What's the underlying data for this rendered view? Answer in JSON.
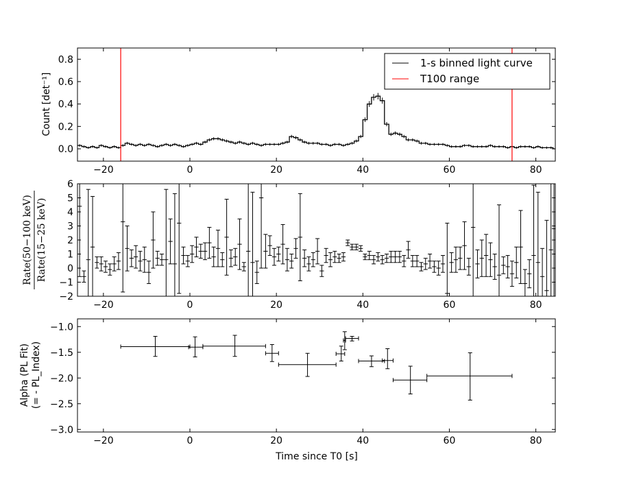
{
  "chart_data": [
    {
      "type": "line",
      "panel": "light-curve",
      "ylabel": "Count [det⁻¹]",
      "xlim": [
        -26,
        84.5
      ],
      "ylim": [
        -0.11,
        0.9
      ],
      "xticks": [
        -20,
        0,
        20,
        40,
        60,
        80
      ],
      "yticks": [
        0.0,
        0.2,
        0.4,
        0.6,
        0.8
      ],
      "ytick_labels": [
        "0.0",
        "0.2",
        "0.4",
        "0.6",
        "0.8"
      ],
      "legend_placement": "top-right",
      "series": [
        {
          "name": "1-s binned light curve",
          "color": "#000000",
          "x_start": -26,
          "bin_width": 1,
          "values": [
            0.03,
            0.02,
            0.01,
            0.02,
            0.01,
            0.03,
            0.02,
            0.01,
            0.02,
            0.01,
            0.03,
            0.05,
            0.04,
            0.03,
            0.04,
            0.03,
            0.04,
            0.03,
            0.02,
            0.03,
            0.04,
            0.03,
            0.04,
            0.03,
            0.02,
            0.03,
            0.04,
            0.05,
            0.04,
            0.06,
            0.08,
            0.09,
            0.09,
            0.08,
            0.07,
            0.06,
            0.05,
            0.06,
            0.05,
            0.04,
            0.05,
            0.04,
            0.03,
            0.04,
            0.04,
            0.04,
            0.04,
            0.05,
            0.06,
            0.11,
            0.1,
            0.08,
            0.06,
            0.05,
            0.05,
            0.05,
            0.04,
            0.04,
            0.03,
            0.04,
            0.04,
            0.03,
            0.04,
            0.05,
            0.07,
            0.11,
            0.26,
            0.4,
            0.46,
            0.47,
            0.43,
            0.22,
            0.13,
            0.14,
            0.13,
            0.11,
            0.08,
            0.08,
            0.07,
            0.05,
            0.05,
            0.04,
            0.04,
            0.04,
            0.04,
            0.03,
            0.02,
            0.02,
            0.02,
            0.03,
            0.03,
            0.02,
            0.02,
            0.02,
            0.02,
            0.03,
            0.02,
            0.02,
            0.02,
            0.01,
            0.02,
            0.01,
            0.02,
            0.02,
            0.02,
            0.01,
            0.02,
            0.01,
            0.01,
            0.01,
            0.0
          ]
        },
        {
          "name": "T100 range",
          "color": "#ff0000",
          "x": [
            -16,
            74.5
          ]
        }
      ]
    },
    {
      "type": "scatter",
      "panel": "hardness-ratio",
      "ylabel_numerator": "Rate(50−100 keV)",
      "ylabel_denominator": "Rate(15−25 keV)",
      "xlim": [
        -26,
        84.5
      ],
      "ylim": [
        -2,
        6
      ],
      "xticks": [
        -20,
        0,
        20,
        40,
        60,
        80
      ],
      "yticks": [
        -2,
        -1,
        0,
        1,
        2,
        3,
        4,
        5,
        6
      ],
      "points": [
        {
          "x": -25.5,
          "y": 4.4,
          "err": 5
        },
        {
          "x": -24.5,
          "y": -0.6,
          "err": 0.4
        },
        {
          "x": -23.5,
          "y": 0.6,
          "err": 5
        },
        {
          "x": -22.5,
          "y": 1.5,
          "err": 3.6
        },
        {
          "x": -21.5,
          "y": 0.4,
          "err": 0.4
        },
        {
          "x": -20.5,
          "y": 0.3,
          "err": 0.5
        },
        {
          "x": -19.5,
          "y": 0.1,
          "err": 0.4
        },
        {
          "x": -18.5,
          "y": -0.1,
          "err": 0.4
        },
        {
          "x": -17.5,
          "y": 0.3,
          "err": 0.5
        },
        {
          "x": -16.5,
          "y": 0.5,
          "err": 0.6
        },
        {
          "x": -15.5,
          "y": 3.3,
          "err": 5
        },
        {
          "x": -14.5,
          "y": 1.4,
          "err": 1.6
        },
        {
          "x": -13.5,
          "y": 0.7,
          "err": 0.6
        },
        {
          "x": -12.5,
          "y": 0.8,
          "err": 0.8
        },
        {
          "x": -11.5,
          "y": 0.5,
          "err": 0.7
        },
        {
          "x": -10.5,
          "y": 0.6,
          "err": 0.9
        },
        {
          "x": -9.5,
          "y": -0.3,
          "err": 0.8
        },
        {
          "x": -8.5,
          "y": 2.0,
          "err": 2.0
        },
        {
          "x": -7.5,
          "y": 0.7,
          "err": 0.5
        },
        {
          "x": -6.5,
          "y": 0.6,
          "err": 0.4
        },
        {
          "x": -5.5,
          "y": 0.6,
          "err": 5
        },
        {
          "x": -4.5,
          "y": 1.9,
          "err": 1.6
        },
        {
          "x": -3.5,
          "y": 0.3,
          "err": 5
        },
        {
          "x": -2.5,
          "y": 3.2,
          "err": 5
        },
        {
          "x": -1.5,
          "y": 0.9,
          "err": 0.6
        },
        {
          "x": -0.5,
          "y": 0.5,
          "err": 0.4
        },
        {
          "x": 0.5,
          "y": 1.0,
          "err": 0.6
        },
        {
          "x": 1.5,
          "y": 1.5,
          "err": 0.7
        },
        {
          "x": 2.5,
          "y": 1.2,
          "err": 0.5
        },
        {
          "x": 3.5,
          "y": 1.2,
          "err": 0.6
        },
        {
          "x": 4.5,
          "y": 1.8,
          "err": 1.1
        },
        {
          "x": 5.5,
          "y": 0.8,
          "err": 0.7
        },
        {
          "x": 6.5,
          "y": 1.4,
          "err": 1.3
        },
        {
          "x": 7.5,
          "y": 0.6,
          "err": 0.5
        },
        {
          "x": 8.5,
          "y": 2.2,
          "err": 2.7
        },
        {
          "x": 9.5,
          "y": 0.7,
          "err": 0.6
        },
        {
          "x": 10.5,
          "y": 0.8,
          "err": 0.6
        },
        {
          "x": 11.5,
          "y": 1.7,
          "err": 1.8
        },
        {
          "x": 12.5,
          "y": 0.1,
          "err": 0.3
        },
        {
          "x": 13.5,
          "y": 1.2,
          "err": 5
        },
        {
          "x": 14.5,
          "y": 0.4,
          "err": 5
        },
        {
          "x": 15.5,
          "y": -0.3,
          "err": 0.8
        },
        {
          "x": 16.5,
          "y": 5.0,
          "err": 5
        },
        {
          "x": 17.5,
          "y": 1.2,
          "err": 1.2
        },
        {
          "x": 18.5,
          "y": 1.6,
          "err": 0.7
        },
        {
          "x": 19.5,
          "y": 0.8,
          "err": 0.6
        },
        {
          "x": 20.5,
          "y": 1.0,
          "err": 0.5
        },
        {
          "x": 21.5,
          "y": 1.7,
          "err": 1.4
        },
        {
          "x": 22.5,
          "y": 0.6,
          "err": 0.8
        },
        {
          "x": 23.5,
          "y": 0.5,
          "err": 0.5
        },
        {
          "x": 24.5,
          "y": 1.4,
          "err": 0.7
        },
        {
          "x": 25.5,
          "y": 2.2,
          "err": 3.1
        },
        {
          "x": 26.5,
          "y": 0.7,
          "err": 0.6
        },
        {
          "x": 27.5,
          "y": 0.3,
          "err": 0.5
        },
        {
          "x": 28.5,
          "y": 0.6,
          "err": 0.5
        },
        {
          "x": 29.5,
          "y": 1.2,
          "err": 0.9
        },
        {
          "x": 30.5,
          "y": -0.2,
          "err": 0.4
        },
        {
          "x": 31.5,
          "y": 0.9,
          "err": 0.5
        },
        {
          "x": 32.5,
          "y": 0.6,
          "err": 0.5
        },
        {
          "x": 33.5,
          "y": 0.8,
          "err": 0.4
        },
        {
          "x": 34.5,
          "y": 0.7,
          "err": 0.3
        },
        {
          "x": 35.5,
          "y": 0.8,
          "err": 0.3
        },
        {
          "x": 36.5,
          "y": 1.8,
          "err": 0.2
        },
        {
          "x": 37.5,
          "y": 1.5,
          "err": 0.2
        },
        {
          "x": 38.5,
          "y": 1.5,
          "err": 0.2
        },
        {
          "x": 39.5,
          "y": 1.4,
          "err": 0.2
        },
        {
          "x": 40.5,
          "y": 0.8,
          "err": 0.2
        },
        {
          "x": 41.5,
          "y": 0.9,
          "err": 0.3
        },
        {
          "x": 42.5,
          "y": 0.6,
          "err": 0.3
        },
        {
          "x": 43.5,
          "y": 0.8,
          "err": 0.3
        },
        {
          "x": 44.5,
          "y": 0.6,
          "err": 0.3
        },
        {
          "x": 45.5,
          "y": 0.7,
          "err": 0.3
        },
        {
          "x": 46.5,
          "y": 0.8,
          "err": 0.4
        },
        {
          "x": 47.5,
          "y": 0.8,
          "err": 0.4
        },
        {
          "x": 48.5,
          "y": 0.8,
          "err": 0.4
        },
        {
          "x": 49.5,
          "y": 0.5,
          "err": 0.4
        },
        {
          "x": 50.5,
          "y": 1.3,
          "err": 0.6
        },
        {
          "x": 51.5,
          "y": 0.5,
          "err": 0.4
        },
        {
          "x": 52.5,
          "y": 0.5,
          "err": 0.4
        },
        {
          "x": 53.5,
          "y": 0.1,
          "err": 0.3
        },
        {
          "x": 54.5,
          "y": 0.3,
          "err": 0.4
        },
        {
          "x": 55.5,
          "y": 0.5,
          "err": 0.5
        },
        {
          "x": 56.5,
          "y": 0.1,
          "err": 0.4
        },
        {
          "x": 57.5,
          "y": 0.0,
          "err": 0.5
        },
        {
          "x": 58.5,
          "y": 0.3,
          "err": 0.6
        },
        {
          "x": 59.5,
          "y": -1.8,
          "err": 5
        },
        {
          "x": 60.5,
          "y": 0.4,
          "err": 0.7
        },
        {
          "x": 61.5,
          "y": 0.6,
          "err": 0.9
        },
        {
          "x": 62.5,
          "y": 0.7,
          "err": 0.8
        },
        {
          "x": 63.5,
          "y": 1.6,
          "err": 1.7
        },
        {
          "x": 64.5,
          "y": 0.1,
          "err": 0.6
        },
        {
          "x": 65.5,
          "y": 2.9,
          "err": 5
        },
        {
          "x": 66.5,
          "y": 0.3,
          "err": 1.0
        },
        {
          "x": 67.5,
          "y": 0.7,
          "err": 1.3
        },
        {
          "x": 68.5,
          "y": 0.9,
          "err": 1.5
        },
        {
          "x": 69.5,
          "y": 0.6,
          "err": 1.2
        },
        {
          "x": 70.5,
          "y": 0.1,
          "err": 0.9
        },
        {
          "x": 71.5,
          "y": -0.5,
          "err": 5
        },
        {
          "x": 72.5,
          "y": 0.2,
          "err": 0.6
        },
        {
          "x": 73.5,
          "y": 0.1,
          "err": 0.8
        },
        {
          "x": 74.5,
          "y": -0.4,
          "err": 0.9
        },
        {
          "x": 75.5,
          "y": 0.4,
          "err": 1.1
        },
        {
          "x": 76.5,
          "y": 1.5,
          "err": 2.6
        },
        {
          "x": 77.5,
          "y": -1.1,
          "err": 1.0
        },
        {
          "x": 78.5,
          "y": -0.4,
          "err": 1.0
        },
        {
          "x": 79.5,
          "y": 0.9,
          "err": 5
        },
        {
          "x": 80.5,
          "y": 0.4,
          "err": 5
        },
        {
          "x": 81.5,
          "y": -0.6,
          "err": 2.0
        },
        {
          "x": 82.5,
          "y": -1.6,
          "err": 5
        },
        {
          "x": 83.5,
          "y": 1.3,
          "err": 5
        },
        {
          "x": 84.2,
          "y": 2.8,
          "err": 5
        }
      ]
    },
    {
      "type": "scatter",
      "panel": "alpha",
      "xlabel": "Time since T0 [s]",
      "ylabel_lines": [
        "Alpha (PL Fit)",
        "(= - PL_Index)"
      ],
      "xlim": [
        -26,
        84.5
      ],
      "ylim": [
        -3.05,
        -0.85
      ],
      "xticks": [
        -20,
        0,
        20,
        40,
        60,
        80
      ],
      "yticks": [
        -3.0,
        -2.5,
        -2.0,
        -1.5,
        -1.0
      ],
      "ytick_labels": [
        "−3.0",
        "−2.5",
        "−2.0",
        "−1.5",
        "−1.0"
      ],
      "points": [
        {
          "x": -8.0,
          "xlo": -16.0,
          "xhi": 0.0,
          "y": -1.39,
          "ylo": -1.58,
          "yhi": -1.19
        },
        {
          "x": 1.2,
          "xlo": -0.3,
          "xhi": 3.0,
          "y": -1.4,
          "ylo": -1.59,
          "yhi": -1.2
        },
        {
          "x": 10.4,
          "xlo": 3.0,
          "xhi": 17.5,
          "y": -1.38,
          "ylo": -1.58,
          "yhi": -1.17
        },
        {
          "x": 19.0,
          "xlo": 17.5,
          "xhi": 20.5,
          "y": -1.52,
          "ylo": -1.68,
          "yhi": -1.35
        },
        {
          "x": 27.2,
          "xlo": 20.5,
          "xhi": 33.8,
          "y": -1.74,
          "ylo": -1.97,
          "yhi": -1.52
        },
        {
          "x": 35.0,
          "xlo": 33.8,
          "xhi": 35.8,
          "y": -1.53,
          "ylo": -1.67,
          "yhi": -1.38
        },
        {
          "x": 35.8,
          "xlo": 35.5,
          "xhi": 36.0,
          "y": -1.27,
          "ylo": -1.45,
          "yhi": -1.1
        },
        {
          "x": 37.5,
          "xlo": 36.0,
          "xhi": 39.0,
          "y": -1.23,
          "ylo": -1.28,
          "yhi": -1.19
        },
        {
          "x": 42.0,
          "xlo": 39.0,
          "xhi": 45.0,
          "y": -1.67,
          "ylo": -1.78,
          "yhi": -1.57
        },
        {
          "x": 45.7,
          "xlo": 44.5,
          "xhi": 47.0,
          "y": -1.66,
          "ylo": -1.82,
          "yhi": -1.43
        },
        {
          "x": 51.0,
          "xlo": 47.0,
          "xhi": 54.8,
          "y": -2.04,
          "ylo": -2.31,
          "yhi": -1.77
        },
        {
          "x": 64.8,
          "xlo": 54.8,
          "xhi": 74.5,
          "y": -1.96,
          "ylo": -2.43,
          "yhi": -1.51
        }
      ]
    }
  ]
}
